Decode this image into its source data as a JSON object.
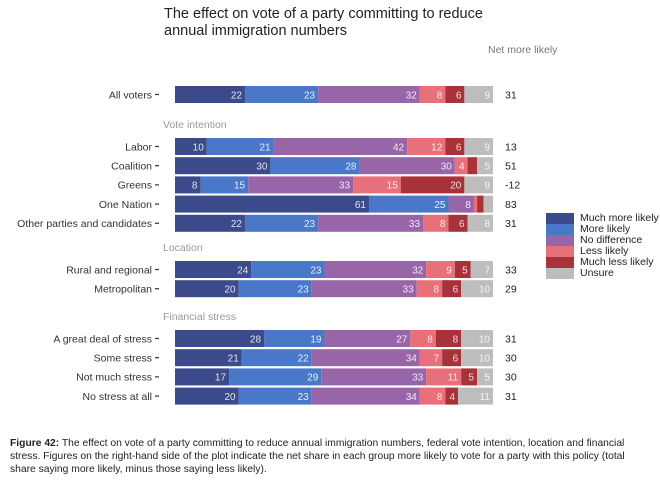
{
  "chart_data": {
    "type": "bar",
    "orientation": "horizontal",
    "stacked": true,
    "title": "The effect on vote of a party committing to reduce annual immigration numbers",
    "title_lines": [
      "The effect on vote of a party committing to reduce",
      "annual immigration numbers"
    ],
    "net_column_header": "Net more likely",
    "xlim": [
      0,
      100
    ],
    "legend_position": "right",
    "series": [
      {
        "name": "Much more likely",
        "color": "#3b4a8a"
      },
      {
        "name": "More likely",
        "color": "#4a78c9"
      },
      {
        "name": "No difference",
        "color": "#9866a8"
      },
      {
        "name": "Less likely",
        "color": "#e8707a"
      },
      {
        "name": "Much less likely",
        "color": "#a8323a"
      },
      {
        "name": "Unsure",
        "color": "#bdbdbd"
      }
    ],
    "groups": [
      {
        "heading": "",
        "rows": [
          {
            "label": "All voters",
            "values": [
              22,
              23,
              32,
              8,
              6,
              9
            ],
            "net": "31"
          }
        ]
      },
      {
        "heading": "Vote intention",
        "rows": [
          {
            "label": "Labor",
            "values": [
              10,
              21,
              42,
              12,
              6,
              9
            ],
            "net": "13"
          },
          {
            "label": "Coalition",
            "values": [
              30,
              28,
              30,
              4,
              3,
              5
            ],
            "net": "51"
          },
          {
            "label": "Greens",
            "values": [
              8,
              15,
              33,
              15,
              20,
              9
            ],
            "net": "-12"
          },
          {
            "label": "One Nation",
            "values": [
              61,
              25,
              8,
              1,
              2,
              3
            ],
            "net": "83"
          },
          {
            "label": "Other parties and candidates",
            "values": [
              22,
              23,
              33,
              8,
              6,
              8
            ],
            "net": "31"
          }
        ]
      },
      {
        "heading": "Location",
        "rows": [
          {
            "label": "Rural and regional",
            "values": [
              24,
              23,
              32,
              9,
              5,
              7
            ],
            "net": "33"
          },
          {
            "label": "Metropolitan",
            "values": [
              20,
              23,
              33,
              8,
              6,
              10
            ],
            "net": "29"
          }
        ]
      },
      {
        "heading": "Financial stress",
        "rows": [
          {
            "label": "A great deal of stress",
            "values": [
              28,
              19,
              27,
              8,
              8,
              10
            ],
            "net": "31"
          },
          {
            "label": "Some stress",
            "values": [
              21,
              22,
              34,
              7,
              6,
              10
            ],
            "net": "30"
          },
          {
            "label": "Not much stress",
            "values": [
              17,
              29,
              33,
              11,
              5,
              5
            ],
            "net": "30"
          },
          {
            "label": "No stress at all",
            "values": [
              20,
              23,
              34,
              8,
              4,
              11
            ],
            "net": "31"
          }
        ]
      }
    ],
    "label_min_value": 4
  },
  "caption": {
    "figure_label": "Figure 42:",
    "text": " The effect on vote of a party committing to reduce annual immigration numbers, federal vote intention, location and financial stress. Figures on the right-hand side of the plot indicate the net share in each group more likely to vote for a party with this policy (total share saying more likely, minus those saying less likely)."
  }
}
